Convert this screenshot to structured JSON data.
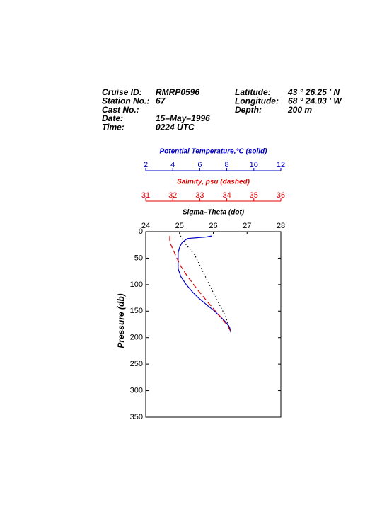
{
  "header": {
    "left": [
      {
        "label": "Cruise ID:",
        "value": "RMRP0596"
      },
      {
        "label": "Station No.:",
        "value": "67"
      },
      {
        "label": "Cast No.:"
      },
      {
        "label": "Date:",
        "value": "15–May–1996"
      },
      {
        "label": "Time:",
        "value": "0224 UTC"
      }
    ],
    "right": [
      {
        "label": "Latitude:",
        "value": "43 ° 26.25 ' N"
      },
      {
        "label": "Longitude:",
        "value": "68 ° 24.03 ' W"
      },
      {
        "label": "Depth:",
        "value": "200 m"
      }
    ]
  },
  "chart_data": {
    "type": "profile",
    "ylabel": "Pressure (db)",
    "ylim": [
      0,
      350
    ],
    "yticks": [
      0,
      50,
      100,
      150,
      200,
      250,
      300,
      350
    ],
    "y_inverted": true,
    "grid": false,
    "series": [
      {
        "name": "Potential Temperature,°C (solid)",
        "color": "#0000c8",
        "line_style": "solid",
        "xlim": [
          2,
          12
        ],
        "xticks": [
          2,
          4,
          6,
          8,
          10,
          12
        ],
        "y": [
          8,
          10,
          13,
          20,
          30,
          40,
          55,
          70,
          85,
          100,
          115,
          125,
          140,
          150,
          160,
          170,
          180,
          190
        ],
        "values": [
          6.9,
          6.5,
          5.1,
          4.7,
          4.5,
          4.4,
          4.4,
          4.4,
          4.6,
          5.0,
          5.5,
          5.9,
          6.6,
          7.1,
          7.5,
          7.9,
          8.2,
          8.3
        ]
      },
      {
        "name": "Salinity, psu  (dashed)",
        "color": "#e00000",
        "line_style": "dashed",
        "xlim": [
          31,
          36
        ],
        "xticks": [
          31,
          32,
          33,
          34,
          35,
          36
        ],
        "y": [
          8,
          20,
          44,
          64,
          84,
          111,
          135,
          158,
          178,
          191
        ],
        "values": [
          31.89,
          31.89,
          32.1,
          32.28,
          32.54,
          32.94,
          33.33,
          33.72,
          34.04,
          34.17
        ]
      },
      {
        "name": "Sigma–Theta (dot)",
        "color": "#000000",
        "line_style": "dotted",
        "xlim": [
          24,
          28
        ],
        "xticks": [
          24,
          25,
          26,
          27,
          28
        ],
        "y": [
          8,
          24,
          44,
          84,
          124,
          158,
          184,
          191
        ],
        "values": [
          25.03,
          25.19,
          25.45,
          25.76,
          26.07,
          26.35,
          26.49,
          26.53
        ]
      }
    ]
  }
}
